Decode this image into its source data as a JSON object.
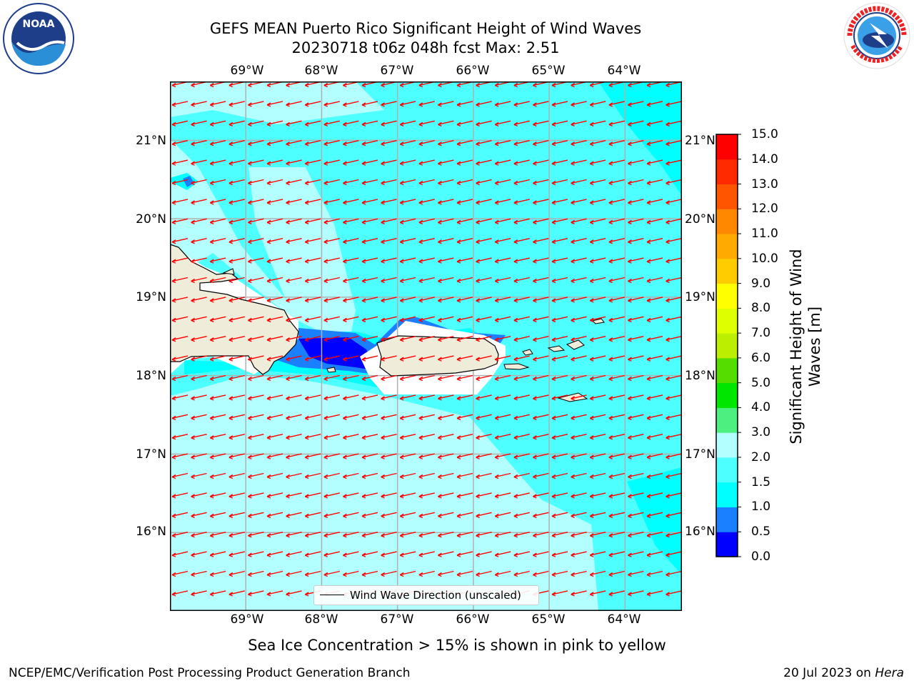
{
  "header": {
    "title_line1": "GEFS MEAN Puerto Rico Significant Height of Wind Waves",
    "title_line2": "20230718 t06z 048h fcst   Max: 2.51"
  },
  "logos": {
    "left": {
      "name": "noaa-logo",
      "text": "NOAA",
      "ring_text": "NATIONAL OCEANIC AND ATMOSPHERIC ADMINISTRATION · U.S. DEPARTMENT OF COMMERCE"
    },
    "right": {
      "name": "nws-logo",
      "ring_text": "NATIONAL WEATHER SERVICE"
    }
  },
  "map": {
    "lon_labels": [
      "69°W",
      "68°W",
      "67°W",
      "66°W",
      "65°W",
      "64°W"
    ],
    "lat_labels": [
      "21°N",
      "20°N",
      "19°N",
      "18°N",
      "17°N",
      "16°N"
    ],
    "lon_values": [
      -69,
      -68,
      -67,
      -66,
      -65,
      -64
    ],
    "lat_values": [
      21,
      20,
      19,
      18,
      17,
      16
    ],
    "extent": {
      "lon": [
        -70.0,
        -63.25
      ],
      "lat": [
        15.0,
        21.75
      ]
    },
    "colors": {
      "land": "#efecd9",
      "coast": "#000000",
      "grid": "#b0b0b0",
      "arrow": "#ff0000",
      "no_data": "#ffffff"
    },
    "wind_wave_direction": "westward (from east)"
  },
  "legend": {
    "label": "Wind Wave Direction (unscaled)"
  },
  "colorbar": {
    "label_line1": "Significant Height of Wind",
    "label_line2": "Waves [m]",
    "ticks": [
      "0.0",
      "0.5",
      "1.0",
      "1.5",
      "2.0",
      "3.0",
      "4.0",
      "5.0",
      "6.0",
      "7.0",
      "8.0",
      "9.0",
      "10.0",
      "11.0",
      "12.0",
      "13.0",
      "14.0",
      "15.0"
    ],
    "colors": [
      "#0000ff",
      "#1a80ff",
      "#00ffff",
      "#4dffff",
      "#b3ffff",
      "#4df080",
      "#00e600",
      "#55dd00",
      "#bbee00",
      "#ddff00",
      "#ffff00",
      "#ffcc00",
      "#ffaa00",
      "#ff8800",
      "#ff5500",
      "#ff2a00",
      "#ff0000"
    ]
  },
  "footer": {
    "sea_ice_note": "Sea Ice Concentration > 15% is shown in pink to yellow",
    "left": "NCEP/EMC/Verification Post Processing Product Generation Branch",
    "right_date": "20 Jul 2023 on ",
    "right_host": "Hera"
  }
}
